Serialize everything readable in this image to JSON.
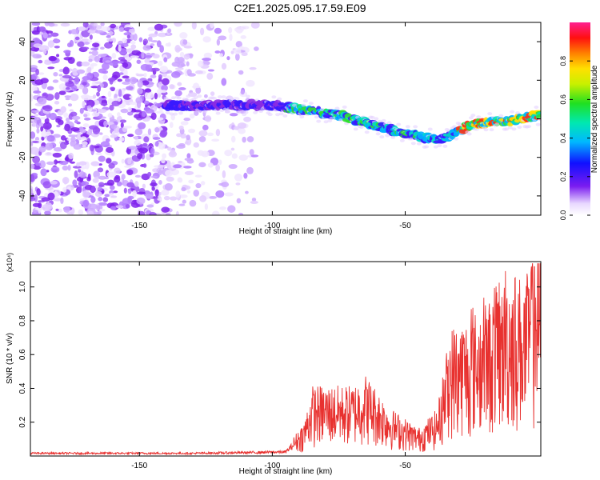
{
  "title": "C2E1.2025.095.17.59.E09",
  "chart_data": [
    {
      "type": "heatmap",
      "title": "C2E1.2025.095.17.59.E09",
      "xlabel": "Height of straight line (km)",
      "ylabel": "Frequency (Hz)",
      "xlim": [
        -191,
        1
      ],
      "ylim": [
        -50,
        50
      ],
      "xticks": [
        -150,
        -100,
        -50
      ],
      "yticks": [
        -40,
        -20,
        0,
        20,
        40
      ],
      "colorbar": {
        "label": "Normalized spectral amplitude",
        "range": [
          0,
          1
        ],
        "ticks": [
          "0.0",
          "0.2",
          "0.4",
          "0.6",
          "0.8"
        ]
      },
      "ridge": {
        "description_points": [
          {
            "x": -140,
            "y": 7
          },
          {
            "x": -100,
            "y": 7
          },
          {
            "x": -75,
            "y": 2
          },
          {
            "x": -50,
            "y": -8
          },
          {
            "x": -37,
            "y": -11
          },
          {
            "x": -25,
            "y": -3
          },
          {
            "x": -10,
            "y": -1
          },
          {
            "x": 0,
            "y": 2
          }
        ]
      }
    },
    {
      "type": "line",
      "xlabel": "Height of straight line (km)",
      "ylabel": "SNR (10 * v/v)",
      "y_multiplier_label": "(x10⁴)",
      "xlim": [
        -191,
        1
      ],
      "ylim": [
        0,
        1.15
      ],
      "xticks": [
        -150,
        -100,
        -50
      ],
      "yticks": [
        "0.2",
        "0.4",
        "0.6",
        "0.8",
        "1.0"
      ],
      "series": [
        {
          "color": "#e8312f",
          "envelope": [
            {
              "x": -191,
              "y": 0.02
            },
            {
              "x": -130,
              "y": 0.02
            },
            {
              "x": -110,
              "y": 0.025
            },
            {
              "x": -95,
              "y": 0.03
            },
            {
              "x": -88,
              "y": 0.15
            },
            {
              "x": -85,
              "y": 0.3
            },
            {
              "x": -70,
              "y": 0.3
            },
            {
              "x": -65,
              "y": 0.35
            },
            {
              "x": -55,
              "y": 0.2
            },
            {
              "x": -45,
              "y": 0.12
            },
            {
              "x": -38,
              "y": 0.2
            },
            {
              "x": -33,
              "y": 0.55
            },
            {
              "x": -25,
              "y": 0.6
            },
            {
              "x": -15,
              "y": 0.7
            },
            {
              "x": -10,
              "y": 0.8
            },
            {
              "x": -5,
              "y": 0.75
            },
            {
              "x": 0,
              "y": 0.9
            }
          ]
        }
      ]
    }
  ]
}
